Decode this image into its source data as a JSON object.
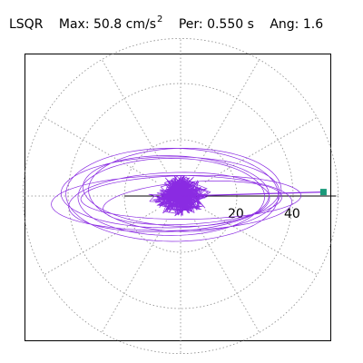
{
  "header": {
    "algorithm": "LSQR",
    "max_label": "Max:",
    "max_value": "50.8 cm/s",
    "max_exp": "2",
    "per_label": "Per:",
    "per_value": "0.550 s",
    "ang_label": "Ang:",
    "ang_value": "1.6"
  },
  "chart_data": {
    "type": "polar",
    "title": "",
    "radial_ticks": [
      20,
      40
    ],
    "radial_range": [
      0,
      56
    ],
    "spokes_deg": [
      0,
      30,
      60,
      90,
      120,
      150,
      180,
      210,
      240,
      270,
      300,
      330
    ],
    "grid": true,
    "max_value": 50.8,
    "max_angle_deg": 1.6,
    "colors": {
      "trace": "#8a2be2",
      "grid": "#888888",
      "axis": "#000000",
      "marker": "#1a9a7a"
    }
  }
}
